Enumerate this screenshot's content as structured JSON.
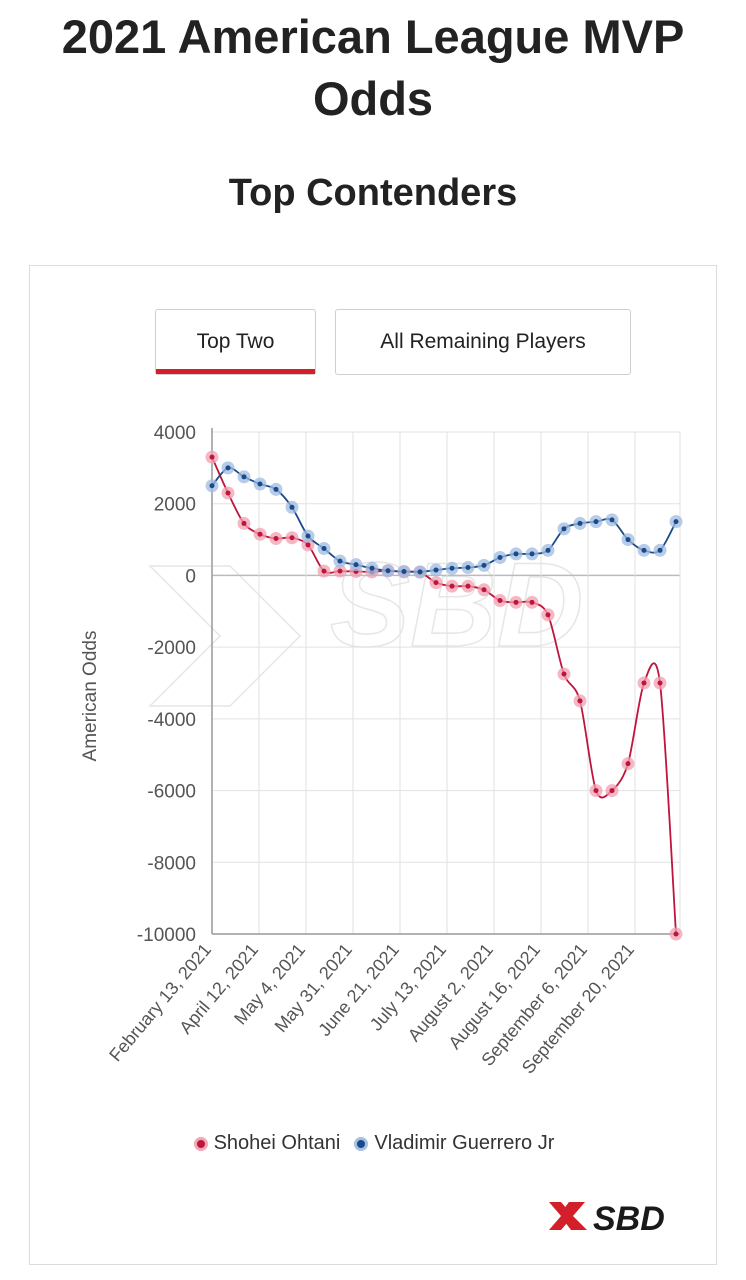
{
  "page": {
    "title": "2021 American League MVP Odds",
    "subtitle": "Top Contenders"
  },
  "tabs": [
    {
      "label": "Top Two",
      "active": true
    },
    {
      "label": "All Remaining Players",
      "active": false
    }
  ],
  "logo": {
    "text": "SBD",
    "icon": "sbd-x-logo-icon"
  },
  "colors": {
    "ohtani": "#c0143c",
    "guerrero": "#1a4a8a",
    "tab_accent": "#d21f2a"
  },
  "chart_data": {
    "type": "line",
    "ylabel": "American Odds",
    "xlabel": "",
    "ylim": [
      -10000,
      4000
    ],
    "yticks": [
      4000,
      2000,
      0,
      -2000,
      -4000,
      -6000,
      -8000,
      -10000
    ],
    "xtick_labels": [
      "February 13, 2021",
      "April 12, 2021",
      "May 4, 2021",
      "May 31, 2021",
      "June 21, 2021",
      "July 13, 2021",
      "August 2, 2021",
      "August 16, 2021",
      "September 6, 2021",
      "September 20, 2021"
    ],
    "grid": true,
    "legend_position": "bottom",
    "series": [
      {
        "name": "Shohei Ohtani",
        "values": [
          3300,
          2300,
          1450,
          1150,
          1030,
          1050,
          850,
          120,
          120,
          110,
          100,
          130,
          100,
          90,
          -200,
          -300,
          -300,
          -400,
          -700,
          -750,
          -750,
          -1100,
          -2750,
          -3500,
          -6000,
          -6000,
          -5250,
          -3000,
          -3000,
          -10000
        ]
      },
      {
        "name": "Vladimir Guerrero Jr",
        "values": [
          2500,
          3000,
          2750,
          2550,
          2400,
          1900,
          1100,
          750,
          400,
          300,
          200,
          130,
          110,
          100,
          150,
          200,
          220,
          280,
          500,
          600,
          600,
          700,
          1300,
          1450,
          1500,
          1550,
          1000,
          700,
          700,
          1500
        ]
      }
    ]
  }
}
